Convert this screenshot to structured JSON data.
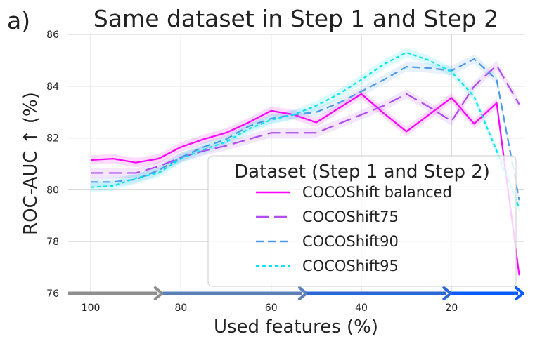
{
  "chart_data": {
    "type": "line",
    "panel_label": "a)",
    "title": "Same dataset in Step 1 and Step 2",
    "xlabel": "Used features (%)",
    "ylabel": "ROC-AUC  ↑  (%)",
    "xlim": [
      105,
      4
    ],
    "ylim": [
      76,
      86
    ],
    "x_ticks": [
      100,
      80,
      60,
      40,
      20
    ],
    "y_ticks": [
      76,
      78,
      80,
      82,
      84,
      86
    ],
    "grid": true,
    "legend": {
      "title": "Dataset (Step 1 and Step 2)",
      "placement": "lower-right"
    },
    "x": [
      100,
      95,
      90,
      85,
      80,
      75,
      70,
      65,
      60,
      55,
      50,
      45,
      40,
      35,
      30,
      25,
      20,
      15,
      10,
      5
    ],
    "series": [
      {
        "name": "COCOShift balanced",
        "color": "#ff00ff",
        "dash": "solid",
        "values": [
          81.15,
          81.2,
          81.05,
          81.2,
          81.65,
          81.95,
          82.2,
          82.6,
          83.05,
          82.9,
          82.6,
          83.15,
          83.7,
          82.95,
          82.25,
          82.9,
          83.55,
          82.55,
          83.35,
          76.7
        ]
      },
      {
        "name": "COCOShift75",
        "color": "#b04cf0",
        "dash": "longdash",
        "values": [
          80.65,
          80.65,
          80.65,
          80.9,
          81.25,
          81.5,
          81.7,
          81.95,
          82.2,
          82.2,
          82.2,
          82.55,
          82.9,
          83.25,
          83.7,
          83.2,
          82.65,
          84.0,
          84.8,
          83.3
        ]
      },
      {
        "name": "COCOShift90",
        "color": "#4d9be8",
        "dash": "dash",
        "values": [
          80.3,
          80.3,
          80.4,
          80.75,
          81.25,
          81.65,
          81.95,
          82.45,
          82.75,
          82.9,
          83.0,
          83.35,
          83.8,
          84.25,
          84.75,
          84.7,
          84.6,
          85.05,
          84.25,
          79.6
        ]
      },
      {
        "name": "COCOShift95",
        "color": "#00e5ee",
        "dash": "dot",
        "values": [
          80.1,
          80.15,
          80.45,
          80.65,
          81.2,
          81.55,
          81.85,
          82.35,
          82.7,
          82.9,
          83.25,
          83.7,
          84.25,
          84.85,
          85.3,
          85.0,
          84.55,
          83.6,
          81.5,
          79.3
        ]
      }
    ],
    "bottom_arrows": [
      {
        "from": 105,
        "to": 84,
        "color": "#8e8e8e"
      },
      {
        "from": 84,
        "to": 52,
        "color": "#5b80b8"
      },
      {
        "from": 52,
        "to": 20,
        "color": "#2b66d6"
      },
      {
        "from": 20,
        "to": 4,
        "color": "#0b5cff"
      }
    ]
  }
}
